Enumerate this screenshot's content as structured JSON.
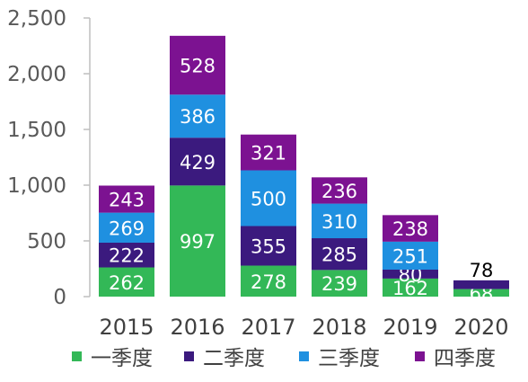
{
  "chart_data": {
    "type": "bar",
    "stacked": true,
    "title": "",
    "xlabel": "",
    "ylabel": "",
    "ylim": [
      0,
      2500
    ],
    "yticks": [
      0,
      500,
      1000,
      1500,
      2000,
      2500
    ],
    "ytick_labels": [
      "0",
      "500",
      "1,000",
      "1,500",
      "2,000",
      "2,500"
    ],
    "grid": false,
    "legend_position": "bottom",
    "categories": [
      "2015",
      "2016",
      "2017",
      "2018",
      "2019",
      "2020"
    ],
    "series": [
      {
        "name": "一季度",
        "color": "#33b857",
        "label_color": "#ffffff",
        "values": [
          262,
          997,
          278,
          239,
          162,
          68
        ]
      },
      {
        "name": "二季度",
        "color": "#3b1a7e",
        "label_color": "#ffffff",
        "values": [
          222,
          429,
          355,
          285,
          80,
          78
        ]
      },
      {
        "name": "三季度",
        "color": "#1f90e0",
        "label_color": "#ffffff",
        "values": [
          269,
          386,
          500,
          310,
          251,
          null
        ]
      },
      {
        "name": "四季度",
        "color": "#7c1291",
        "label_color": "#ffffff",
        "values": [
          243,
          528,
          321,
          236,
          238,
          null
        ]
      }
    ]
  }
}
